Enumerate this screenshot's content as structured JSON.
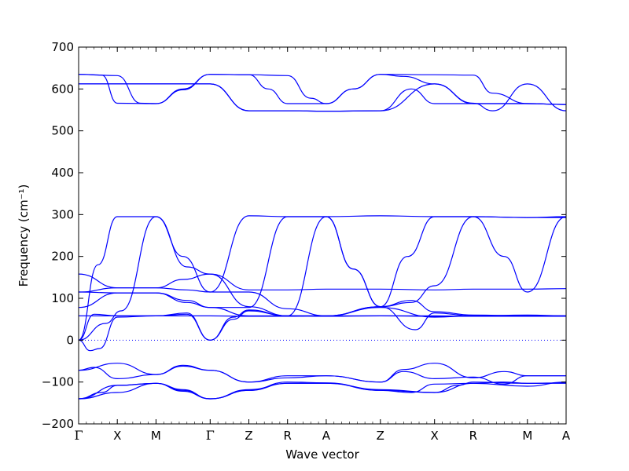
{
  "chart_data": {
    "type": "line",
    "title": "",
    "xlabel": "Wave vector",
    "ylabel": "Frequency (cm⁻¹)",
    "ylim": [
      -200,
      700
    ],
    "yticks": [
      "700",
      "600",
      "500",
      "400",
      "300",
      "200",
      "100",
      "0",
      "−100",
      "−200"
    ],
    "ytick_values": [
      700,
      600,
      500,
      400,
      300,
      200,
      100,
      0,
      -100,
      -200
    ],
    "kpath_labels": [
      "Γ",
      "X",
      "M",
      "Γ",
      "Z",
      "R",
      "A",
      "Z",
      "X",
      "R",
      "M",
      "A"
    ],
    "kpath_positions": [
      0,
      0.5,
      1,
      1.7,
      2.2,
      2.7,
      3.2,
      3.9,
      4.6,
      5.1,
      5.8,
      6.3
    ],
    "zero_line": {
      "y": 0,
      "style": "dotted"
    },
    "line_color": "#0000ff",
    "series": [
      {
        "points": [
          [
            0,
            635
          ],
          [
            0.5,
            632
          ],
          [
            0.8,
            566
          ],
          [
            1,
            565
          ],
          [
            1.35,
            600
          ],
          [
            1.7,
            635
          ],
          [
            2.2,
            634
          ],
          [
            2.7,
            632
          ],
          [
            3.0,
            578
          ],
          [
            3.2,
            565
          ],
          [
            3.55,
            600
          ],
          [
            3.9,
            635
          ],
          [
            4.6,
            634
          ],
          [
            5.1,
            633
          ],
          [
            5.35,
            590
          ],
          [
            5.8,
            565
          ],
          [
            6.3,
            563
          ]
        ]
      },
      {
        "points": [
          [
            0,
            635
          ],
          [
            0.3,
            633
          ],
          [
            0.5,
            566
          ],
          [
            1,
            565
          ],
          [
            1.35,
            598
          ],
          [
            1.7,
            635
          ],
          [
            2.2,
            634
          ],
          [
            2.45,
            600
          ],
          [
            2.7,
            565
          ],
          [
            3.2,
            565
          ],
          [
            3.55,
            600
          ],
          [
            3.9,
            635
          ],
          [
            4.2,
            630
          ],
          [
            4.6,
            612
          ],
          [
            5.1,
            565
          ],
          [
            5.8,
            565
          ],
          [
            6.3,
            563
          ]
        ]
      },
      {
        "points": [
          [
            0,
            612
          ],
          [
            0.5,
            612
          ],
          [
            1,
            612
          ],
          [
            1.7,
            612
          ],
          [
            2.2,
            548
          ],
          [
            2.7,
            548
          ],
          [
            3.2,
            547
          ],
          [
            3.9,
            548
          ],
          [
            4.3,
            600
          ],
          [
            4.6,
            565
          ],
          [
            5.1,
            565
          ],
          [
            5.8,
            565
          ],
          [
            6.3,
            563
          ]
        ]
      },
      {
        "points": [
          [
            0,
            612
          ],
          [
            0.5,
            612
          ],
          [
            1,
            612
          ],
          [
            1.7,
            612
          ],
          [
            2.2,
            548
          ],
          [
            2.7,
            548
          ],
          [
            3.2,
            547
          ],
          [
            3.9,
            548
          ],
          [
            4.6,
            612
          ],
          [
            5.1,
            566
          ],
          [
            5.35,
            548
          ],
          [
            5.8,
            612
          ],
          [
            6.3,
            548
          ]
        ]
      },
      {
        "points": [
          [
            0,
            0
          ],
          [
            0.25,
            180
          ],
          [
            0.5,
            295
          ],
          [
            1,
            295
          ],
          [
            1.35,
            200
          ],
          [
            1.7,
            115
          ],
          [
            2.2,
            297
          ],
          [
            2.7,
            295
          ],
          [
            3.2,
            295
          ],
          [
            3.9,
            297
          ],
          [
            4.6,
            295
          ],
          [
            5.1,
            295
          ],
          [
            5.8,
            293
          ],
          [
            6.3,
            293
          ]
        ]
      },
      {
        "points": [
          [
            0,
            0
          ],
          [
            0.35,
            40
          ],
          [
            0.55,
            70
          ],
          [
            1,
            295
          ],
          [
            1.4,
            175
          ],
          [
            1.7,
            158
          ],
          [
            2.2,
            120
          ],
          [
            2.7,
            120
          ],
          [
            3.2,
            122
          ],
          [
            3.9,
            122
          ],
          [
            4.6,
            120
          ],
          [
            5.1,
            122
          ],
          [
            5.8,
            122
          ],
          [
            6.3,
            123
          ]
        ]
      },
      {
        "points": [
          [
            0,
            158
          ],
          [
            0.5,
            125
          ],
          [
            1,
            125
          ],
          [
            1.35,
            145
          ],
          [
            1.7,
            158
          ],
          [
            2.2,
            80
          ],
          [
            2.7,
            58
          ],
          [
            3.2,
            295
          ],
          [
            3.55,
            170
          ],
          [
            3.9,
            80
          ],
          [
            4.25,
            200
          ],
          [
            4.6,
            295
          ],
          [
            5.1,
            295
          ],
          [
            5.8,
            293
          ],
          [
            6.3,
            295
          ]
        ]
      },
      {
        "points": [
          [
            0,
            115
          ],
          [
            0.5,
            113
          ],
          [
            1,
            113
          ],
          [
            1.4,
            95
          ],
          [
            1.7,
            78
          ],
          [
            2.2,
            78
          ],
          [
            2.7,
            295
          ],
          [
            3.2,
            295
          ],
          [
            3.55,
            170
          ],
          [
            3.9,
            80
          ],
          [
            4.3,
            90
          ],
          [
            4.6,
            130
          ],
          [
            5.1,
            295
          ],
          [
            5.5,
            200
          ],
          [
            5.8,
            115
          ],
          [
            6.3,
            295
          ]
        ]
      },
      {
        "points": [
          [
            0,
            115
          ],
          [
            0.5,
            125
          ],
          [
            1,
            125
          ],
          [
            1.4,
            120
          ],
          [
            1.7,
            115
          ],
          [
            2.2,
            115
          ],
          [
            2.7,
            75
          ],
          [
            3.2,
            58
          ],
          [
            3.9,
            80
          ],
          [
            4.35,
            25
          ],
          [
            4.6,
            65
          ],
          [
            5.1,
            58
          ],
          [
            5.8,
            60
          ],
          [
            6.3,
            58
          ]
        ]
      },
      {
        "points": [
          [
            0,
            78
          ],
          [
            0.5,
            113
          ],
          [
            1,
            113
          ],
          [
            1.4,
            90
          ],
          [
            1.7,
            78
          ],
          [
            2.2,
            58
          ],
          [
            2.7,
            58
          ],
          [
            3.2,
            58
          ],
          [
            3.9,
            78
          ],
          [
            4.6,
            55
          ],
          [
            5.1,
            58
          ],
          [
            5.8,
            58
          ],
          [
            6.3,
            58
          ]
        ]
      },
      {
        "points": [
          [
            0,
            58
          ],
          [
            0.5,
            58
          ],
          [
            1,
            58
          ],
          [
            1.7,
            58
          ],
          [
            2.2,
            57
          ],
          [
            2.7,
            57
          ],
          [
            3.2,
            58
          ],
          [
            3.9,
            58
          ],
          [
            4.6,
            57
          ],
          [
            5.1,
            58
          ],
          [
            5.8,
            58
          ],
          [
            6.3,
            57
          ]
        ]
      },
      {
        "points": [
          [
            0,
            0
          ],
          [
            0.2,
            62
          ],
          [
            0.5,
            58
          ],
          [
            1,
            58
          ],
          [
            1.4,
            62
          ],
          [
            1.7,
            0
          ],
          [
            2.0,
            55
          ],
          [
            2.2,
            72
          ],
          [
            2.7,
            58
          ],
          [
            3.2,
            58
          ],
          [
            3.9,
            80
          ],
          [
            4.3,
            95
          ],
          [
            4.6,
            68
          ],
          [
            5.1,
            60
          ],
          [
            5.8,
            58
          ],
          [
            6.3,
            58
          ]
        ]
      },
      {
        "points": [
          [
            0,
            0
          ],
          [
            0.15,
            -25
          ],
          [
            0.27,
            -20
          ],
          [
            0.5,
            55
          ],
          [
            1,
            58
          ],
          [
            1.4,
            65
          ],
          [
            1.7,
            0
          ],
          [
            2.0,
            50
          ],
          [
            2.2,
            70
          ],
          [
            2.7,
            58
          ],
          [
            3.2,
            57
          ],
          [
            3.9,
            58
          ],
          [
            4.6,
            58
          ],
          [
            5.1,
            57
          ],
          [
            5.8,
            57
          ],
          [
            6.3,
            57
          ]
        ]
      },
      {
        "points": [
          [
            0,
            -72
          ],
          [
            0.5,
            -55
          ],
          [
            1,
            -82
          ],
          [
            1.35,
            -60
          ],
          [
            1.7,
            -72
          ],
          [
            2.2,
            -100
          ],
          [
            2.7,
            -85
          ],
          [
            3.2,
            -85
          ],
          [
            3.9,
            -100
          ],
          [
            4.2,
            -70
          ],
          [
            4.6,
            -55
          ],
          [
            5.1,
            -90
          ],
          [
            5.5,
            -75
          ],
          [
            5.8,
            -85
          ],
          [
            6.3,
            -85
          ]
        ]
      },
      {
        "points": [
          [
            0,
            -72
          ],
          [
            0.2,
            -65
          ],
          [
            0.5,
            -92
          ],
          [
            1,
            -82
          ],
          [
            1.35,
            -62
          ],
          [
            1.7,
            -72
          ],
          [
            2.2,
            -100
          ],
          [
            2.7,
            -90
          ],
          [
            3.2,
            -85
          ],
          [
            3.9,
            -100
          ],
          [
            4.2,
            -75
          ],
          [
            4.6,
            -92
          ],
          [
            5.1,
            -88
          ],
          [
            5.5,
            -105
          ],
          [
            5.8,
            -85
          ],
          [
            6.3,
            -85
          ]
        ]
      },
      {
        "points": [
          [
            0,
            -140
          ],
          [
            0.5,
            -108
          ],
          [
            1,
            -103
          ],
          [
            1.35,
            -120
          ],
          [
            1.7,
            -140
          ],
          [
            2.2,
            -120
          ],
          [
            2.7,
            -103
          ],
          [
            3.2,
            -103
          ],
          [
            3.9,
            -120
          ],
          [
            4.3,
            -125
          ],
          [
            4.6,
            -105
          ],
          [
            5.1,
            -103
          ],
          [
            5.5,
            -100
          ],
          [
            5.8,
            -103
          ],
          [
            6.3,
            -103
          ]
        ]
      },
      {
        "points": [
          [
            0,
            -140
          ],
          [
            0.3,
            -125
          ],
          [
            0.5,
            -108
          ],
          [
            1,
            -103
          ],
          [
            1.35,
            -122
          ],
          [
            1.7,
            -140
          ],
          [
            2.2,
            -120
          ],
          [
            2.7,
            -100
          ],
          [
            3.2,
            -102
          ],
          [
            3.9,
            -120
          ],
          [
            4.6,
            -125
          ],
          [
            5.1,
            -103
          ],
          [
            5.8,
            -110
          ],
          [
            6.3,
            -100
          ]
        ]
      },
      {
        "points": [
          [
            0,
            -140
          ],
          [
            0.5,
            -125
          ],
          [
            1,
            -103
          ],
          [
            1.35,
            -118
          ],
          [
            1.7,
            -140
          ],
          [
            2.2,
            -118
          ],
          [
            2.7,
            -103
          ],
          [
            3.2,
            -103
          ],
          [
            3.9,
            -118
          ],
          [
            4.6,
            -125
          ],
          [
            4.9,
            -108
          ],
          [
            5.1,
            -100
          ],
          [
            5.8,
            -103
          ],
          [
            6.3,
            -102
          ]
        ]
      }
    ]
  }
}
